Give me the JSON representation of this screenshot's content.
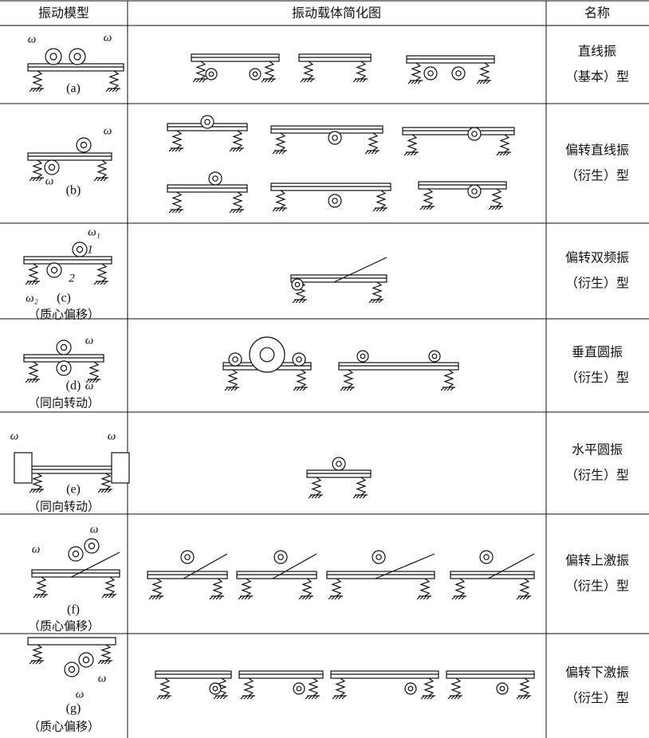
{
  "table": {
    "header": [
      "振动模型",
      "振动载体简化图",
      "名称"
    ],
    "rows": [
      {
        "model_symbols": [
          "ω",
          "ω"
        ],
        "model_label": "(a)",
        "name": [
          "直线振",
          "（基本）型"
        ]
      },
      {
        "model_symbols": [
          "ω",
          "ω"
        ],
        "model_label": "(b)",
        "name": [
          "偏转直线振",
          "（衍生）型"
        ]
      },
      {
        "model_symbols": [
          "ω₁",
          "1",
          "2",
          "ω₂"
        ],
        "model_label": "(c)",
        "model_note": "（质心偏移）",
        "name": [
          "偏转双频振",
          "（衍生）型"
        ]
      },
      {
        "model_symbols": [
          "ω",
          "ω"
        ],
        "model_label": "(d)",
        "model_note": "（同向转动）",
        "name": [
          "垂直圆振",
          "（衍生）型"
        ]
      },
      {
        "model_symbols": [
          "ω",
          "ω"
        ],
        "model_label": "(e)",
        "model_note": "（同向转动）",
        "name": [
          "水平圆振",
          "（衍生）型"
        ]
      },
      {
        "model_symbols": [
          "ω",
          "ω"
        ],
        "model_label": "(f)",
        "model_note": "（质心偏移）",
        "name": [
          "偏转上激振",
          "（衍生）型"
        ]
      },
      {
        "model_symbols": [
          "ω",
          "ω"
        ],
        "model_label": "(g)",
        "model_note": "（质心偏移）",
        "name": [
          "偏转下激振",
          "（衍生）型"
        ]
      }
    ]
  }
}
